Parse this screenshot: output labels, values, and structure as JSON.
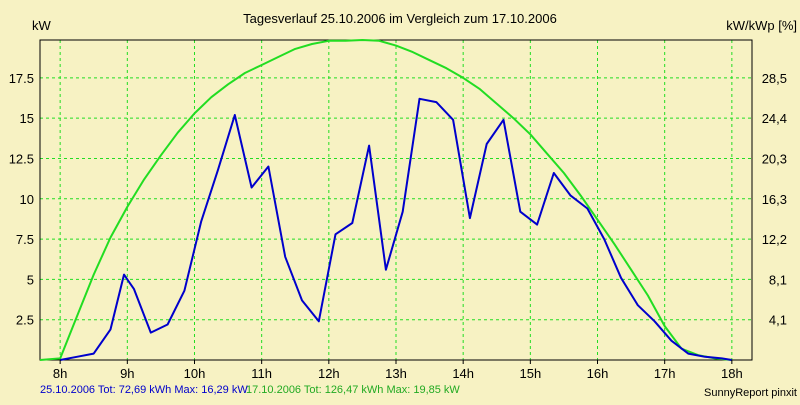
{
  "chart_data": {
    "type": "line",
    "title": "Tagesverlauf 25.10.2006 im Vergleich zum 17.10.2006",
    "ylabel_left": "kW",
    "ylabel_right": "kW/kWp [%]",
    "xlim": [
      7.7,
      18.3
    ],
    "ylim": [
      0,
      19.85
    ],
    "x_ticks": [
      {
        "value": 8,
        "label": "8h"
      },
      {
        "value": 9,
        "label": "9h"
      },
      {
        "value": 10,
        "label": "10h"
      },
      {
        "value": 11,
        "label": "11h"
      },
      {
        "value": 12,
        "label": "12h"
      },
      {
        "value": 13,
        "label": "13h"
      },
      {
        "value": 14,
        "label": "14h"
      },
      {
        "value": 15,
        "label": "15h"
      },
      {
        "value": 16,
        "label": "16h"
      },
      {
        "value": 17,
        "label": "17h"
      },
      {
        "value": 18,
        "label": "18h"
      }
    ],
    "y_ticks_left": [
      {
        "value": 2.5,
        "label": "2.5"
      },
      {
        "value": 5,
        "label": "5"
      },
      {
        "value": 7.5,
        "label": "7.5"
      },
      {
        "value": 10,
        "label": "10"
      },
      {
        "value": 12.5,
        "label": "12.5"
      },
      {
        "value": 15,
        "label": "15"
      },
      {
        "value": 17.5,
        "label": "17.5"
      }
    ],
    "y_ticks_right": [
      {
        "value": 2.5,
        "label": "4,1"
      },
      {
        "value": 5,
        "label": "8,1"
      },
      {
        "value": 7.5,
        "label": "12,2"
      },
      {
        "value": 10,
        "label": "16,3"
      },
      {
        "value": 12.5,
        "label": "20,3"
      },
      {
        "value": 15,
        "label": "24,4"
      },
      {
        "value": 17.5,
        "label": "28,5"
      }
    ],
    "grid": true,
    "series": [
      {
        "name": "17.10.2006",
        "color": "#22dd22",
        "x": [
          7.7,
          8.0,
          8.25,
          8.5,
          8.75,
          9.0,
          9.25,
          9.5,
          9.75,
          10.0,
          10.25,
          10.5,
          10.75,
          11.0,
          11.25,
          11.5,
          11.75,
          12.0,
          12.25,
          12.5,
          12.75,
          13.0,
          13.25,
          13.5,
          13.75,
          14.0,
          14.25,
          14.5,
          14.75,
          15.0,
          15.25,
          15.5,
          15.75,
          16.0,
          16.25,
          16.5,
          16.75,
          17.0,
          17.25,
          17.5,
          17.75,
          18.0
        ],
        "values": [
          0.0,
          0.1,
          2.7,
          5.3,
          7.6,
          9.5,
          11.2,
          12.7,
          14.1,
          15.3,
          16.3,
          17.1,
          17.8,
          18.3,
          18.8,
          19.3,
          19.6,
          19.8,
          19.8,
          19.85,
          19.8,
          19.5,
          19.1,
          18.6,
          18.1,
          17.5,
          16.8,
          15.9,
          15.0,
          14.0,
          12.8,
          11.6,
          10.2,
          8.7,
          7.2,
          5.6,
          4.0,
          2.1,
          0.7,
          0.3,
          0.1,
          0.0
        ]
      },
      {
        "name": "25.10.2006",
        "color": "#0000cc",
        "x": [
          8.0,
          8.25,
          8.5,
          8.75,
          8.95,
          9.1,
          9.35,
          9.6,
          9.85,
          10.1,
          10.35,
          10.6,
          10.85,
          11.1,
          11.35,
          11.6,
          11.85,
          12.1,
          12.35,
          12.6,
          12.85,
          13.1,
          13.35,
          13.6,
          13.85,
          14.1,
          14.35,
          14.6,
          14.85,
          15.1,
          15.35,
          15.6,
          15.85,
          16.1,
          16.35,
          16.6,
          16.85,
          17.1,
          17.35,
          17.6,
          17.85,
          18.0
        ],
        "values": [
          0.0,
          0.2,
          0.4,
          1.9,
          5.3,
          4.4,
          1.7,
          2.2,
          4.3,
          8.6,
          11.8,
          15.2,
          10.7,
          12.0,
          6.4,
          3.7,
          2.4,
          7.8,
          8.5,
          13.3,
          5.6,
          9.2,
          16.2,
          16.0,
          14.9,
          8.8,
          13.4,
          14.9,
          9.2,
          8.4,
          11.6,
          10.2,
          9.4,
          7.5,
          5.1,
          3.4,
          2.4,
          1.2,
          0.4,
          0.2,
          0.1,
          0.0
        ]
      }
    ]
  },
  "footer": {
    "blue_text": "25.10.2006 Tot: 72,69 kWh Max: 16,29 kW",
    "green_text": "17.10.2006 Tot: 126,47 kWh Max: 19,85 kW",
    "credit": "SunnyReport pinxit"
  },
  "colors": {
    "background": "#f7f2c3",
    "grid": "#22dd22",
    "blue": "#0000cc",
    "green": "#22dd22"
  }
}
